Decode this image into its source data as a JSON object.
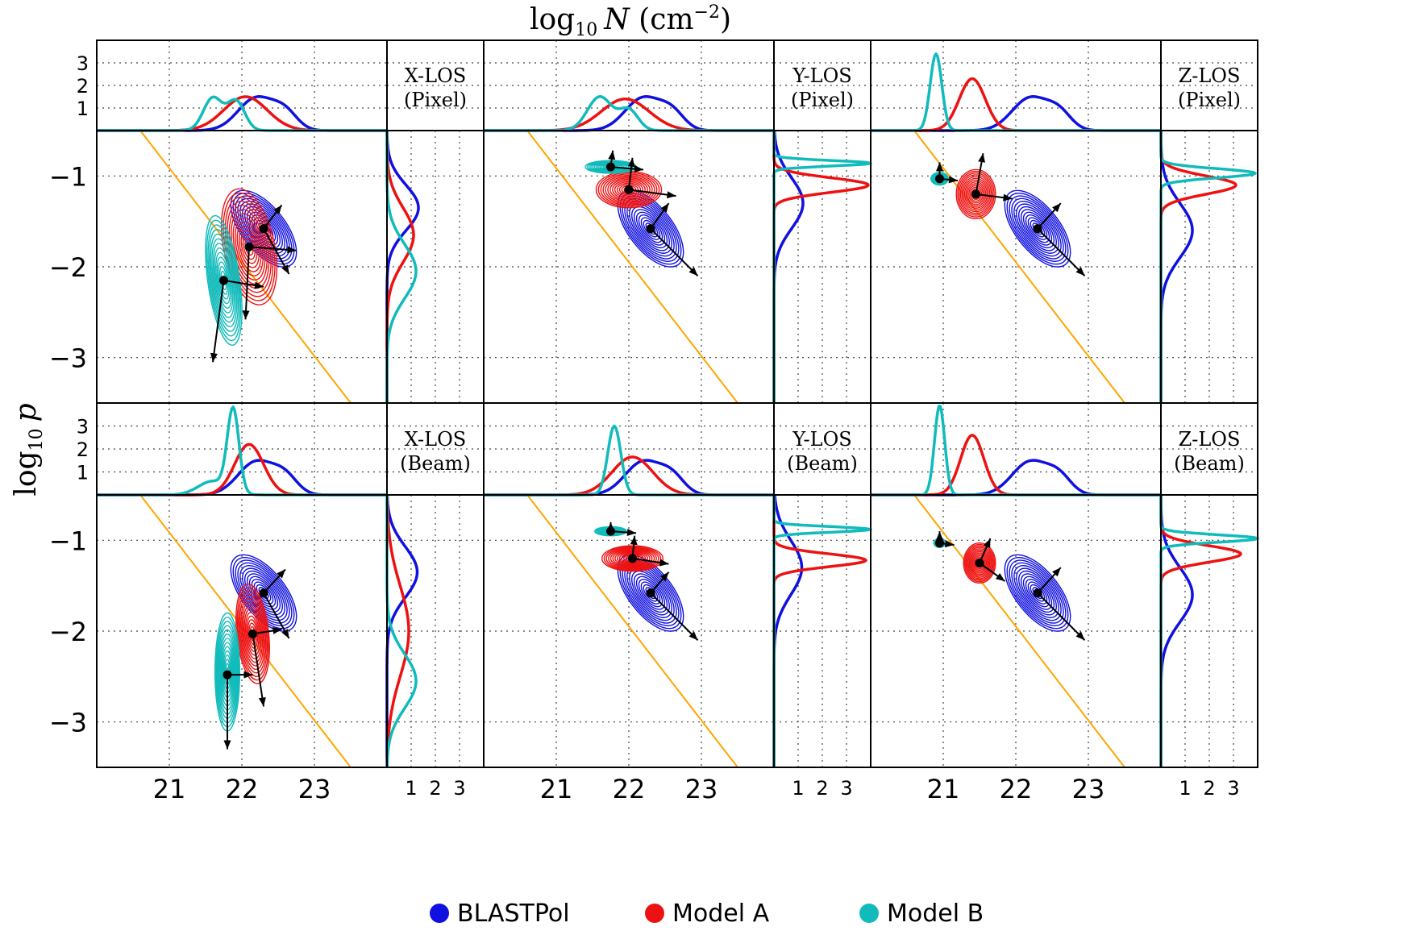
{
  "chart_data": {
    "type": "contour",
    "title": "log10 N (cm−2)",
    "xlabel": "log10 N (cm−2)",
    "ylabel": "log10 p",
    "title_parts": {
      "base": "log",
      "sub": "10",
      "var": "N",
      "unit_open": " (cm",
      "sup": "−2",
      "unit_close": ")"
    },
    "ylabel_parts": {
      "base": "log",
      "sub": "10",
      "var": "p"
    },
    "xlim": [
      20,
      24
    ],
    "ylim": [
      -3.5,
      -0.5
    ],
    "density_xlim": [
      0,
      4
    ],
    "xticks": [
      21,
      22,
      23
    ],
    "yticks": [
      -1,
      -2,
      -3
    ],
    "marginal_ticks": [
      1,
      2,
      3
    ],
    "colors": {
      "BLASTPol": "#1010e0",
      "Model A": "#ee1111",
      "Model B": "#11bbbb",
      "reference_line": "#ffa500",
      "arrows": "#000000"
    },
    "legend": [
      {
        "name": "BLASTPol",
        "color": "#1010e0"
      },
      {
        "name": "Model A",
        "color": "#ee1111"
      },
      {
        "name": "Model B",
        "color": "#11bbbb"
      }
    ],
    "reference_line": {
      "points": [
        [
          20.6,
          -0.5
        ],
        [
          23.5,
          -3.5
        ]
      ]
    },
    "panels": [
      {
        "id": "x-pixel",
        "los": "X-LOS",
        "kind": "(Pixel)",
        "ellipses": [
          {
            "series": "BLASTPol",
            "center": [
              22.3,
              -1.58
            ],
            "sx": 0.3,
            "sy": 0.5,
            "angle": 38
          },
          {
            "series": "Model A",
            "center": [
              22.1,
              -1.78
            ],
            "sx": 0.35,
            "sy": 0.65,
            "angle": 12
          },
          {
            "series": "Model B",
            "center": [
              21.75,
              -2.15
            ],
            "sx": 0.22,
            "sy": 0.72,
            "angle": 8
          }
        ],
        "arrows": [
          {
            "from": [
              22.3,
              -1.58
            ],
            "to": [
              22.65,
              -2.08
            ]
          },
          {
            "from": [
              22.3,
              -1.58
            ],
            "to": [
              22.55,
              -1.32
            ]
          },
          {
            "from": [
              22.1,
              -1.78
            ],
            "to": [
              22.05,
              -2.58
            ]
          },
          {
            "from": [
              22.1,
              -1.78
            ],
            "to": [
              22.75,
              -1.82
            ]
          },
          {
            "from": [
              21.75,
              -2.15
            ],
            "to": [
              21.6,
              -3.05
            ]
          },
          {
            "from": [
              21.75,
              -2.15
            ],
            "to": [
              22.3,
              -2.22
            ]
          }
        ],
        "top_density": [
          {
            "series": "BLASTPol",
            "mu": 22.2,
            "sigma": 0.25,
            "amp": 1.45,
            "mu2": 22.6,
            "sigma2": 0.17,
            "amp2": 0.7
          },
          {
            "series": "Model A",
            "mu": 22.05,
            "sigma": 0.3,
            "amp": 1.5,
            "mu2": 0,
            "sigma2": 1,
            "amp2": 0
          },
          {
            "series": "Model B",
            "mu": 21.6,
            "sigma": 0.13,
            "amp": 1.45,
            "mu2": 21.92,
            "sigma2": 0.12,
            "amp2": 1.3
          }
        ],
        "right_density": [
          {
            "series": "BLASTPol",
            "mu": -1.35,
            "sigma": 0.25,
            "amp": 1.3
          },
          {
            "series": "Model A",
            "mu": -1.65,
            "sigma": 0.3,
            "amp": 1.1
          },
          {
            "series": "Model B",
            "mu": -2.05,
            "sigma": 0.3,
            "amp": 1.2
          }
        ]
      },
      {
        "id": "y-pixel",
        "los": "Y-LOS",
        "kind": "(Pixel)",
        "ellipses": [
          {
            "series": "BLASTPol",
            "center": [
              22.3,
              -1.58
            ],
            "sx": 0.3,
            "sy": 0.5,
            "angle": 38
          },
          {
            "series": "Model A",
            "center": [
              22.0,
              -1.15
            ],
            "sx": 0.45,
            "sy": 0.2,
            "angle": 0
          },
          {
            "series": "Model B",
            "center": [
              21.75,
              -0.9
            ],
            "sx": 0.35,
            "sy": 0.07,
            "angle": 0
          }
        ],
        "arrows": [
          {
            "from": [
              22.3,
              -1.58
            ],
            "to": [
              22.95,
              -2.1
            ]
          },
          {
            "from": [
              22.3,
              -1.58
            ],
            "to": [
              22.55,
              -1.3
            ]
          },
          {
            "from": [
              22.0,
              -1.15
            ],
            "to": [
              22.65,
              -1.22
            ]
          },
          {
            "from": [
              22.0,
              -1.15
            ],
            "to": [
              22.05,
              -0.8
            ]
          },
          {
            "from": [
              21.75,
              -0.9
            ],
            "to": [
              22.2,
              -0.93
            ]
          },
          {
            "from": [
              21.75,
              -0.9
            ],
            "to": [
              21.78,
              -0.72
            ]
          }
        ],
        "top_density": [
          {
            "series": "BLASTPol",
            "mu": 22.2,
            "sigma": 0.25,
            "amp": 1.45,
            "mu2": 22.6,
            "sigma2": 0.17,
            "amp2": 0.7
          },
          {
            "series": "Model A",
            "mu": 21.95,
            "sigma": 0.33,
            "amp": 1.4,
            "mu2": 0,
            "sigma2": 1,
            "amp2": 0
          },
          {
            "series": "Model B",
            "mu": 21.6,
            "sigma": 0.17,
            "amp": 1.5,
            "mu2": 22.0,
            "sigma2": 0.13,
            "amp2": 0.9
          }
        ],
        "right_density": [
          {
            "series": "BLASTPol",
            "mu": -1.3,
            "sigma": 0.28,
            "amp": 1.2
          },
          {
            "series": "Model A",
            "mu": -1.1,
            "sigma": 0.08,
            "amp": 3.9
          },
          {
            "series": "Model B",
            "mu": -0.86,
            "sigma": 0.03,
            "amp": 4.0
          }
        ]
      },
      {
        "id": "z-pixel",
        "los": "Z-LOS",
        "kind": "(Pixel)",
        "ellipses": [
          {
            "series": "BLASTPol",
            "center": [
              22.3,
              -1.58
            ],
            "sx": 0.3,
            "sy": 0.5,
            "angle": 38
          },
          {
            "series": "Model A",
            "center": [
              21.45,
              -1.2
            ],
            "sx": 0.27,
            "sy": 0.27,
            "angle": 0
          },
          {
            "series": "Model B",
            "center": [
              20.95,
              -1.03
            ],
            "sx": 0.12,
            "sy": 0.07,
            "angle": 0
          }
        ],
        "arrows": [
          {
            "from": [
              22.3,
              -1.58
            ],
            "to": [
              22.95,
              -2.1
            ]
          },
          {
            "from": [
              22.3,
              -1.58
            ],
            "to": [
              22.62,
              -1.3
            ]
          },
          {
            "from": [
              21.45,
              -1.2
            ],
            "to": [
              21.55,
              -0.75
            ]
          },
          {
            "from": [
              21.45,
              -1.2
            ],
            "to": [
              21.95,
              -1.25
            ]
          },
          {
            "from": [
              20.95,
              -1.03
            ],
            "to": [
              20.95,
              -0.85
            ]
          },
          {
            "from": [
              20.95,
              -1.03
            ],
            "to": [
              21.2,
              -1.05
            ]
          }
        ],
        "top_density": [
          {
            "series": "BLASTPol",
            "mu": 22.2,
            "sigma": 0.25,
            "amp": 1.45,
            "mu2": 22.6,
            "sigma2": 0.17,
            "amp2": 0.7
          },
          {
            "series": "Model A",
            "mu": 21.4,
            "sigma": 0.18,
            "amp": 2.3,
            "mu2": 0,
            "sigma2": 1,
            "amp2": 0
          },
          {
            "series": "Model B",
            "mu": 20.9,
            "sigma": 0.08,
            "amp": 3.4,
            "mu2": 0,
            "sigma2": 1,
            "amp2": 0
          }
        ],
        "right_density": [
          {
            "series": "BLASTPol",
            "mu": -1.6,
            "sigma": 0.3,
            "amp": 1.3
          },
          {
            "series": "Model A",
            "mu": -1.1,
            "sigma": 0.1,
            "amp": 3.1
          },
          {
            "series": "Model B",
            "mu": -0.97,
            "sigma": 0.05,
            "amp": 3.9
          }
        ]
      },
      {
        "id": "x-beam",
        "los": "X-LOS",
        "kind": "(Beam)",
        "ellipses": [
          {
            "series": "BLASTPol",
            "center": [
              22.3,
              -1.58
            ],
            "sx": 0.3,
            "sy": 0.5,
            "angle": 38
          },
          {
            "series": "Model A",
            "center": [
              22.15,
              -2.03
            ],
            "sx": 0.22,
            "sy": 0.55,
            "angle": 6
          },
          {
            "series": "Model B",
            "center": [
              21.8,
              -2.45
            ],
            "sx": 0.17,
            "sy": 0.65,
            "angle": 0
          }
        ],
        "arrows": [
          {
            "from": [
              22.3,
              -1.58
            ],
            "to": [
              22.65,
              -2.08
            ]
          },
          {
            "from": [
              22.3,
              -1.58
            ],
            "to": [
              22.6,
              -1.32
            ]
          },
          {
            "from": [
              22.15,
              -2.03
            ],
            "to": [
              22.3,
              -2.83
            ]
          },
          {
            "from": [
              22.15,
              -2.03
            ],
            "to": [
              22.55,
              -1.98
            ]
          },
          {
            "from": [
              21.8,
              -2.48
            ],
            "to": [
              21.8,
              -3.3
            ]
          },
          {
            "from": [
              21.8,
              -2.48
            ],
            "to": [
              22.15,
              -2.48
            ]
          }
        ],
        "top_density": [
          {
            "series": "BLASTPol",
            "mu": 22.2,
            "sigma": 0.25,
            "amp": 1.45,
            "mu2": 22.6,
            "sigma2": 0.17,
            "amp2": 0.7
          },
          {
            "series": "Model A",
            "mu": 22.1,
            "sigma": 0.2,
            "amp": 2.2,
            "mu2": 0,
            "sigma2": 1,
            "amp2": 0
          },
          {
            "series": "Model B",
            "mu": 21.88,
            "sigma": 0.08,
            "amp": 3.6,
            "mu2": 21.6,
            "sigma2": 0.2,
            "amp2": 0.6
          }
        ],
        "right_density": [
          {
            "series": "BLASTPol",
            "mu": -1.35,
            "sigma": 0.28,
            "amp": 1.25
          },
          {
            "series": "Model A",
            "mu": -2.0,
            "sigma": 0.5,
            "amp": 0.9
          },
          {
            "series": "Model B",
            "mu": -2.55,
            "sigma": 0.3,
            "amp": 1.2
          }
        ]
      },
      {
        "id": "y-beam",
        "los": "Y-LOS",
        "kind": "(Beam)",
        "ellipses": [
          {
            "series": "BLASTPol",
            "center": [
              22.3,
              -1.58
            ],
            "sx": 0.3,
            "sy": 0.5,
            "angle": 38
          },
          {
            "series": "Model A",
            "center": [
              22.05,
              -1.2
            ],
            "sx": 0.42,
            "sy": 0.14,
            "angle": 0
          },
          {
            "series": "Model B",
            "center": [
              21.75,
              -0.9
            ],
            "sx": 0.22,
            "sy": 0.05,
            "angle": 0
          }
        ],
        "arrows": [
          {
            "from": [
              22.3,
              -1.58
            ],
            "to": [
              22.95,
              -2.1
            ]
          },
          {
            "from": [
              22.3,
              -1.58
            ],
            "to": [
              22.55,
              -1.35
            ]
          },
          {
            "from": [
              22.05,
              -1.2
            ],
            "to": [
              22.55,
              -1.26
            ]
          },
          {
            "from": [
              22.05,
              -1.2
            ],
            "to": [
              22.08,
              -0.95
            ]
          },
          {
            "from": [
              21.75,
              -0.9
            ],
            "to": [
              22.1,
              -0.92
            ]
          },
          {
            "from": [
              21.75,
              -0.9
            ],
            "to": [
              21.75,
              -0.8
            ]
          }
        ],
        "top_density": [
          {
            "series": "BLASTPol",
            "mu": 22.2,
            "sigma": 0.25,
            "amp": 1.45,
            "mu2": 22.6,
            "sigma2": 0.17,
            "amp2": 0.7
          },
          {
            "series": "Model A",
            "mu": 22.05,
            "sigma": 0.28,
            "amp": 1.65,
            "mu2": 0,
            "sigma2": 1,
            "amp2": 0
          },
          {
            "series": "Model B",
            "mu": 21.8,
            "sigma": 0.09,
            "amp": 3.0,
            "mu2": 0,
            "sigma2": 1,
            "amp2": 0
          }
        ],
        "right_density": [
          {
            "series": "BLASTPol",
            "mu": -1.3,
            "sigma": 0.3,
            "amp": 1.15
          },
          {
            "series": "Model A",
            "mu": -1.22,
            "sigma": 0.07,
            "amp": 3.8
          },
          {
            "series": "Model B",
            "mu": -0.88,
            "sigma": 0.03,
            "amp": 4.0
          }
        ]
      },
      {
        "id": "z-beam",
        "los": "Z-LOS",
        "kind": "(Beam)",
        "ellipses": [
          {
            "series": "BLASTPol",
            "center": [
              22.3,
              -1.58
            ],
            "sx": 0.3,
            "sy": 0.5,
            "angle": 38
          },
          {
            "series": "Model A",
            "center": [
              21.5,
              -1.25
            ],
            "sx": 0.22,
            "sy": 0.22,
            "angle": 0
          },
          {
            "series": "Model B",
            "center": [
              20.95,
              -1.03
            ],
            "sx": 0.08,
            "sy": 0.05,
            "angle": 0
          }
        ],
        "arrows": [
          {
            "from": [
              22.3,
              -1.58
            ],
            "to": [
              22.95,
              -2.1
            ]
          },
          {
            "from": [
              22.3,
              -1.58
            ],
            "to": [
              22.62,
              -1.3
            ]
          },
          {
            "from": [
              21.5,
              -1.25
            ],
            "to": [
              21.65,
              -0.98
            ]
          },
          {
            "from": [
              21.5,
              -1.25
            ],
            "to": [
              21.85,
              -1.45
            ]
          },
          {
            "from": [
              20.95,
              -1.03
            ],
            "to": [
              20.95,
              -0.9
            ]
          },
          {
            "from": [
              20.95,
              -1.03
            ],
            "to": [
              21.15,
              -1.05
            ]
          }
        ],
        "top_density": [
          {
            "series": "BLASTPol",
            "mu": 22.2,
            "sigma": 0.25,
            "amp": 1.45,
            "mu2": 22.6,
            "sigma2": 0.17,
            "amp2": 0.7
          },
          {
            "series": "Model A",
            "mu": 21.4,
            "sigma": 0.16,
            "amp": 2.6,
            "mu2": 0,
            "sigma2": 1,
            "amp2": 0
          },
          {
            "series": "Model B",
            "mu": 20.95,
            "sigma": 0.07,
            "amp": 3.9,
            "mu2": 0,
            "sigma2": 1,
            "amp2": 0
          }
        ],
        "right_density": [
          {
            "series": "BLASTPol",
            "mu": -1.6,
            "sigma": 0.3,
            "amp": 1.3
          },
          {
            "series": "Model A",
            "mu": -1.15,
            "sigma": 0.09,
            "amp": 3.3
          },
          {
            "series": "Model B",
            "mu": -0.98,
            "sigma": 0.04,
            "amp": 4.0
          }
        ]
      }
    ]
  }
}
